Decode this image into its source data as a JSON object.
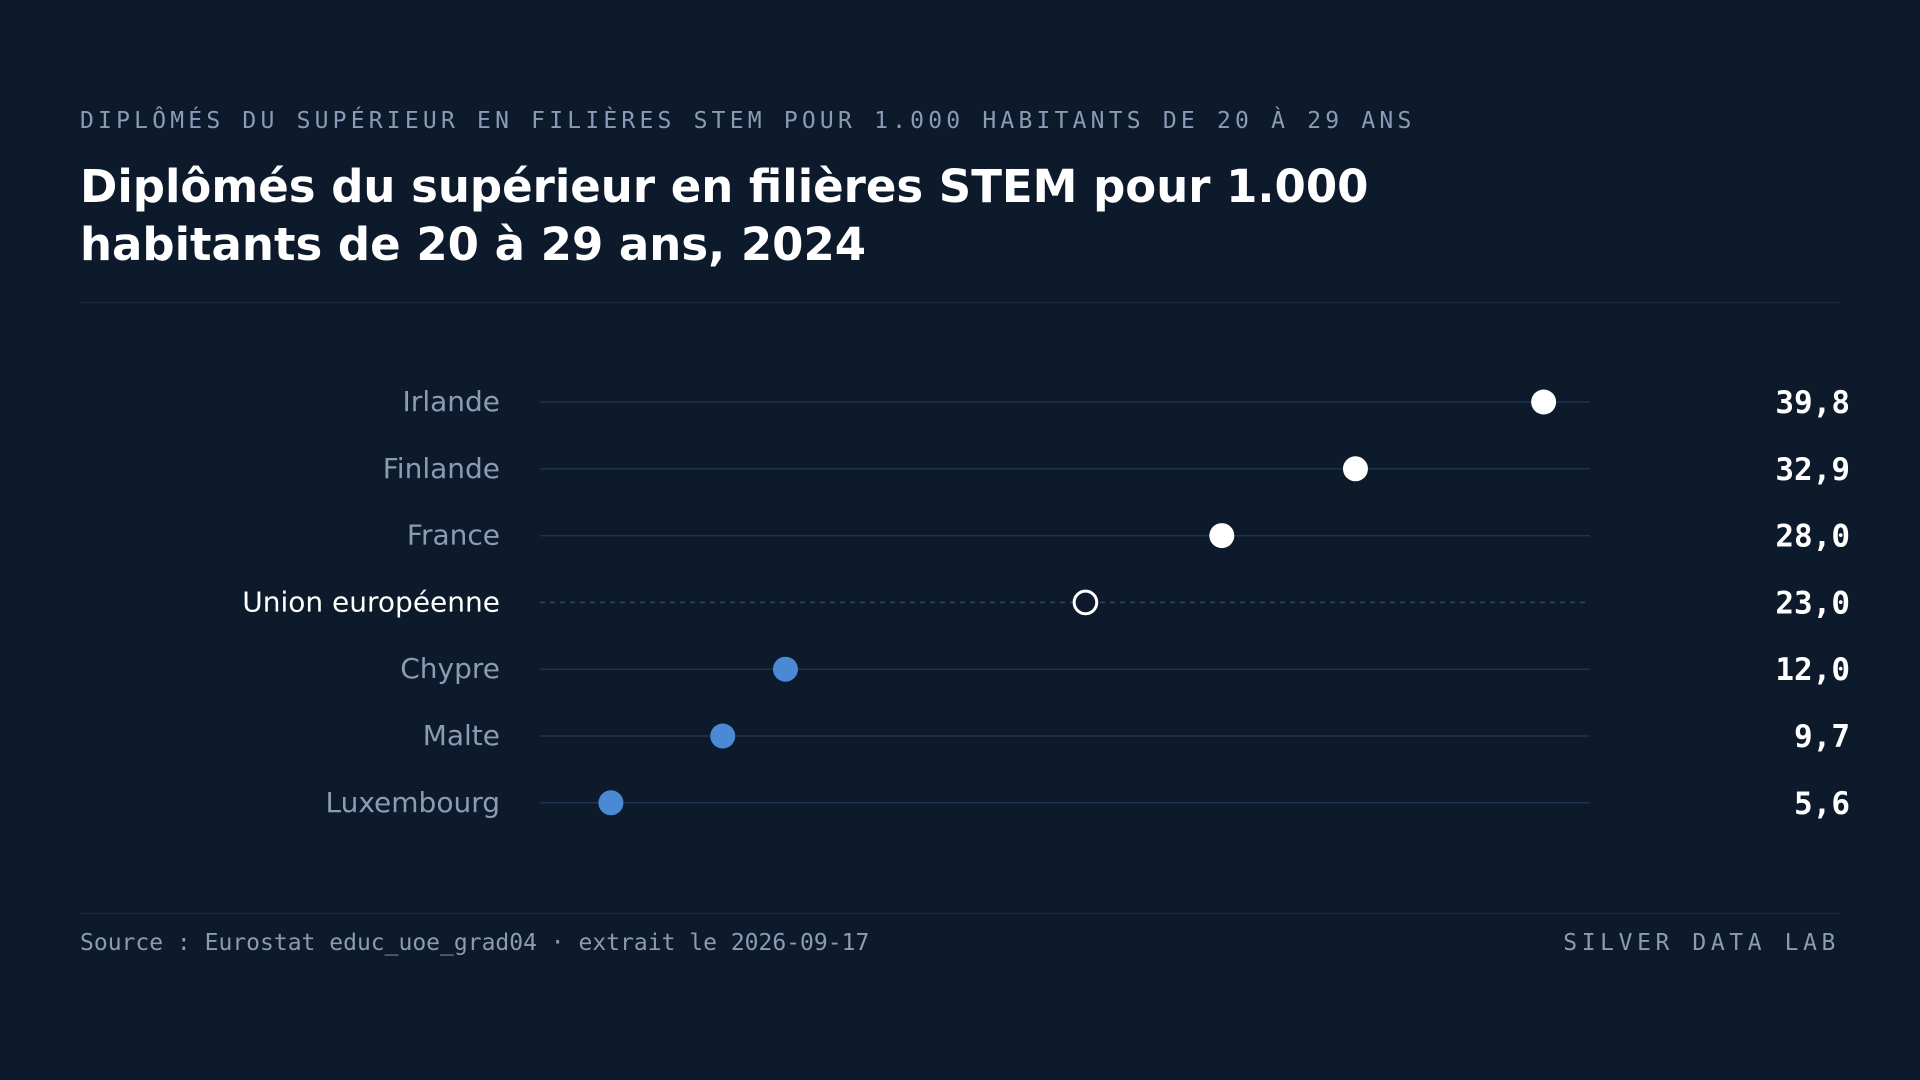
{
  "header": {
    "kicker": "DIPLÔMÉS DU SUPÉRIEUR EN FILIÈRES STEM POUR 1.000 HABITANTS DE 20 À 29 ANS",
    "title": "Diplômés du supérieur en filières STEM pour 1.000 habitants de 20 à 29 ans, 2024"
  },
  "footer": {
    "source": "Source : Eurostat educ_uoe_grad04 · extrait le 2026-09-17",
    "brand": "SILVER DATA LAB"
  },
  "colors": {
    "background": "#0d1a2b",
    "high": "#ffffff",
    "low": "#4a8ad4",
    "reference": "#ffffff",
    "track": "#1e3350",
    "label": "#8a9bb5",
    "label_reference": "#ffffff",
    "value": "#ffffff"
  },
  "chart_data": {
    "type": "dot",
    "title": "Diplômés du supérieur en filières STEM pour 1.000 habitants de 20 à 29 ans, 2024",
    "xlim": [
      3,
      41.5
    ],
    "grid": false,
    "categories": [
      "Irlande",
      "Finlande",
      "France",
      "Union européenne",
      "Chypre",
      "Malte",
      "Luxembourg"
    ],
    "values": [
      39.8,
      32.9,
      28.0,
      23.0,
      12.0,
      9.7,
      5.6
    ],
    "value_labels": [
      "39,8",
      "32,9",
      "28,0",
      "23,0",
      "12,0",
      "9,7",
      "5,6"
    ],
    "styles": [
      "high",
      "high",
      "high",
      "reference",
      "low",
      "low",
      "low"
    ]
  }
}
